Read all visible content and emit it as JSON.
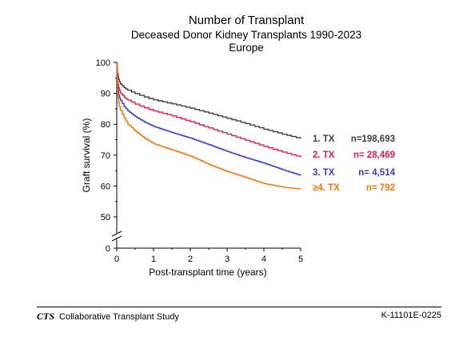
{
  "chart_data": {
    "type": "line",
    "title": "Number of Transplant",
    "subtitle": "Deceased Donor Kidney Transplants 1990-2023",
    "subtitle2": "Europe",
    "xlabel": "Post-transplant time (years)",
    "ylabel": "Graft survival (%)",
    "xlim": [
      0,
      5
    ],
    "ylim": [
      0,
      100
    ],
    "axis_break": [
      0,
      45
    ],
    "xticks": [
      "0",
      "1",
      "2",
      "3",
      "4",
      "5"
    ],
    "yticks": [
      "0",
      "50",
      "60",
      "70",
      "80",
      "90",
      "100"
    ],
    "grid": false,
    "legend_position": "right",
    "series": [
      {
        "label": "1. TX",
        "n": "n=198,693",
        "color": "#404040",
        "x": [
          0,
          0.02,
          0.05,
          0.1,
          0.2,
          0.3,
          0.5,
          0.75,
          1,
          1.5,
          2,
          2.5,
          3,
          3.5,
          4,
          4.5,
          5
        ],
        "y": [
          100,
          96.5,
          94.5,
          93.0,
          91.8,
          91.0,
          89.9,
          88.8,
          87.9,
          86.6,
          85.2,
          83.6,
          81.9,
          80.2,
          78.4,
          76.8,
          75.3
        ]
      },
      {
        "label": "2. TX",
        "n": "n=  28,469",
        "color": "#e0204a",
        "x": [
          0,
          0.02,
          0.05,
          0.1,
          0.2,
          0.3,
          0.5,
          0.75,
          1,
          1.5,
          2,
          2.5,
          3,
          3.5,
          4,
          4.5,
          5
        ],
        "y": [
          100,
          94.0,
          91.8,
          90.0,
          88.7,
          87.8,
          86.5,
          85.3,
          84.3,
          82.7,
          80.8,
          78.8,
          76.8,
          74.8,
          72.8,
          71.0,
          69.3
        ]
      },
      {
        "label": "3. TX",
        "n": "n=    4,514",
        "color": "#3b3bc8",
        "x": [
          0,
          0.02,
          0.05,
          0.1,
          0.2,
          0.3,
          0.5,
          0.75,
          1,
          1.5,
          2,
          2.5,
          3,
          3.5,
          4,
          4.5,
          5
        ],
        "y": [
          100,
          92.0,
          89.5,
          87.7,
          85.7,
          84.3,
          82.5,
          80.7,
          79.3,
          77.3,
          75.5,
          73.4,
          71.2,
          69.2,
          67.4,
          65.3,
          63.4
        ]
      },
      {
        "label": "≥4. TX",
        "n": "n=       792",
        "color": "#f07810",
        "x": [
          0,
          0.02,
          0.05,
          0.1,
          0.2,
          0.3,
          0.5,
          0.75,
          1,
          1.5,
          2,
          2.5,
          3,
          3.5,
          4,
          4.5,
          5
        ],
        "y": [
          100,
          90.0,
          87.0,
          84.5,
          82.0,
          80.0,
          77.8,
          75.5,
          73.7,
          71.7,
          69.7,
          67.0,
          64.7,
          62.8,
          60.8,
          59.7,
          59.0
        ]
      }
    ]
  },
  "footer": {
    "logo": "CTS",
    "org": "Collaborative Transplant Study",
    "code": "K-11101E-0225"
  }
}
